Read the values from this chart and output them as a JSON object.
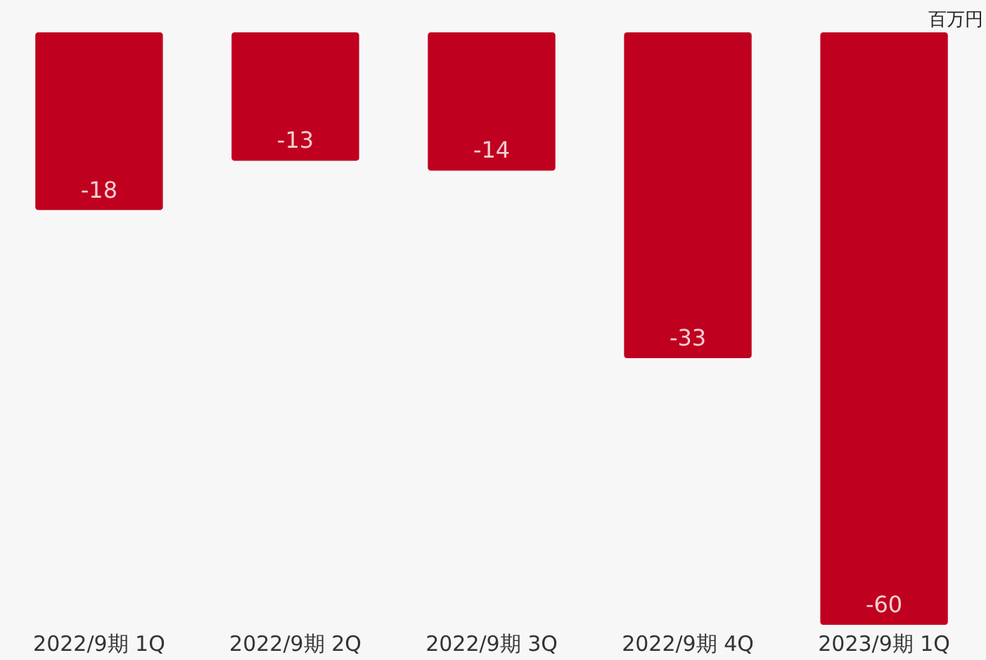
{
  "chart_data": {
    "type": "bar",
    "categories": [
      "2022/9期 1Q",
      "2022/9期 2Q",
      "2022/9期 3Q",
      "2022/9期 4Q",
      "2023/9期 1Q"
    ],
    "values": [
      -18,
      -13,
      -14,
      -33,
      -60
    ],
    "color": "#c0001f",
    "data_labels": true,
    "annotations": [
      "百万円"
    ]
  }
}
